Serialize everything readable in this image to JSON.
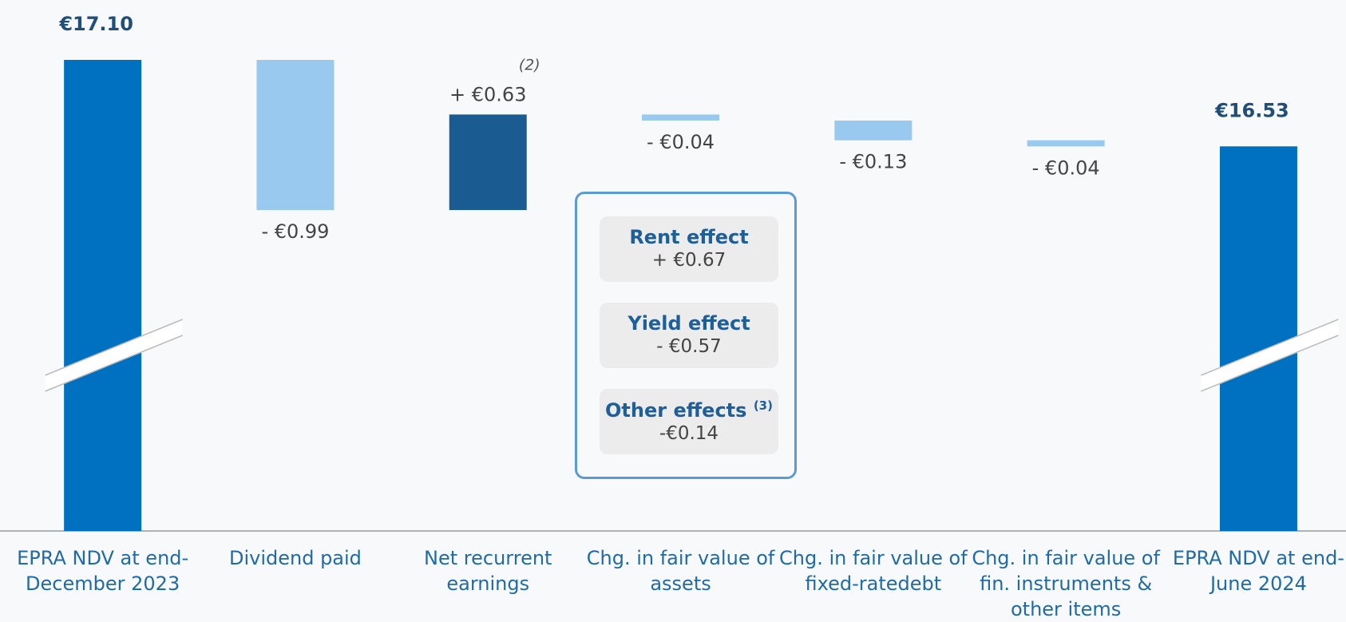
{
  "chart_data": {
    "type": "waterfall",
    "categories": [
      "EPRA NDV at end-December 2023",
      "Dividend paid",
      "Net recurrent earnings",
      "Chg. in fair value of assets",
      "Chg. in fair value of fixed-ratedebt",
      "Chg. in fair value of fin. instruments & other items",
      "EPRA NDV at end-June 2024"
    ],
    "values": [
      17.1,
      -0.99,
      0.63,
      -0.04,
      -0.13,
      -0.04,
      16.53
    ],
    "value_labels": [
      "€17.10",
      "- €0.99",
      "+ €0.63",
      "- €0.04",
      "- €0.13",
      "- €0.04",
      "€16.53"
    ],
    "measures": [
      "total",
      "relative",
      "relative",
      "relative",
      "relative",
      "relative",
      "total"
    ],
    "colors": {
      "total": "#0070c0",
      "decrease": "#99c9ee",
      "increase": "#1a5c91"
    },
    "ylim": [
      16.0,
      17.2
    ],
    "axis_break": true,
    "annotations": [
      {
        "category": 2,
        "text": "(2)"
      }
    ],
    "breakdown": {
      "category": 3,
      "items": [
        {
          "name": "Rent effect",
          "label": "+ €0.67"
        },
        {
          "name": "Yield effect",
          "label": "- €0.57"
        },
        {
          "name": "Other effects",
          "note": "(3)",
          "label": "-€0.14"
        }
      ]
    }
  }
}
